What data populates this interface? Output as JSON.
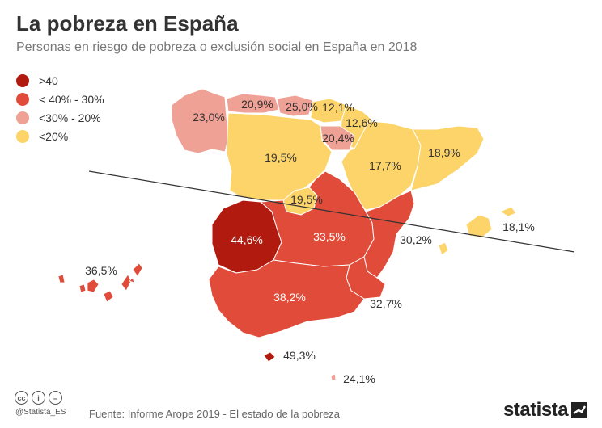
{
  "title": "La pobreza en España",
  "subtitle": "Personas en riesgo de pobreza o exclusión social en España en 2018",
  "legend": [
    {
      "label": ">40",
      "color": "#b01a0f"
    },
    {
      "label": "< 40% - 30%",
      "color": "#e04b3a"
    },
    {
      "label": "<30% - 20%",
      "color": "#f0a196"
    },
    {
      "label": "<20%",
      "color": "#fcd46a"
    }
  ],
  "colors": {
    "dark": "#b01a0f",
    "red": "#e04b3a",
    "pink": "#f0a196",
    "yellow": "#fcd46a"
  },
  "regions": {
    "galicia": "23,0%",
    "asturias": "20,9%",
    "cantabria": "25,0%",
    "pais_vasco": "12,1%",
    "navarra": "12,6%",
    "la_rioja": "20,4%",
    "castilla_leon": "19,5%",
    "aragon": "17,7%",
    "cataluna": "18,9%",
    "madrid": "19,5%",
    "extremadura": "44,6%",
    "castilla_la_mancha": "33,5%",
    "valencia": "30,2%",
    "baleares": "18,1%",
    "canarias": "36,5%",
    "andalucia": "38,2%",
    "murcia": "32,7%",
    "ceuta": "49,3%",
    "melilla": "24,1%"
  },
  "footer": {
    "cc_icons": [
      "cc",
      "i",
      "="
    ],
    "handle": "@Statista_ES",
    "source": "Fuente: Informe Arope 2019 - El estado de la pobreza",
    "brand": "statista"
  }
}
